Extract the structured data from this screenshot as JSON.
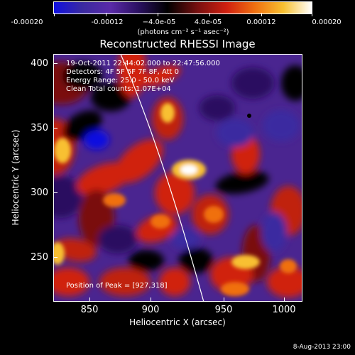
{
  "colorbar": {
    "tick_labels": [
      "-0.00020",
      "-0.00012",
      "−4.0e-05",
      "4.0e-05",
      "0.00012",
      "0.00020"
    ],
    "units": "(photons cm⁻² s⁻¹ asec⁻²)"
  },
  "title": "Reconstructed RHESSI Image",
  "info": {
    "line1": "19-Oct-2011 22:44:02.000 to 22:47:56.000",
    "line2": "Detectors: 4F 5F 6F 7F 8F, Att 0",
    "line3": "Energy Range: 25.0 - 50.0 keV",
    "line4": "Clean     Total counts: 1.07E+04"
  },
  "peak": "Position of Peak = [927,318]",
  "axes": {
    "x_ticks": [
      "850",
      "900",
      "950",
      "1000"
    ],
    "y_ticks": [
      "400",
      "350",
      "300",
      "250"
    ],
    "x_title": "Heliocentric X (arcsec)",
    "y_title": "Heliocentric Y (arcsec)"
  },
  "footer": "8-Aug-2013 23:00",
  "colors": {
    "colormap": [
      "#1010e0",
      "#3a2aa0",
      "#5a2aa8",
      "#2a1060",
      "#000000",
      "#7a1010",
      "#d02010",
      "#f07010",
      "#f8c030",
      "#ffffff"
    ]
  }
}
